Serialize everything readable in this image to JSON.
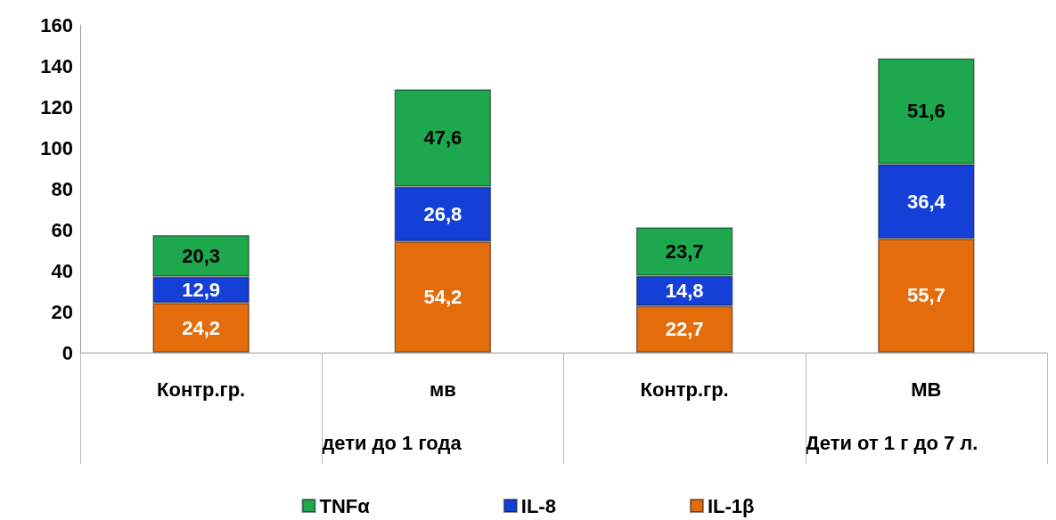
{
  "chart_data": {
    "type": "bar",
    "stacked": true,
    "categories": [
      "Контр.гр.",
      "мв",
      "Контр.гр.",
      "МВ"
    ],
    "series": [
      {
        "name": "IL-1β",
        "color": "#e46c0a",
        "values": [
          24.2,
          54.2,
          22.7,
          55.7
        ],
        "value_labels": [
          "24,2",
          "54,2",
          "22,7",
          "55,7"
        ]
      },
      {
        "name": "IL-8",
        "color": "#1440d8",
        "values": [
          12.9,
          26.8,
          14.8,
          36.4
        ],
        "value_labels": [
          "12,9",
          "26,8",
          "14,8",
          "36,4"
        ]
      },
      {
        "name": "TNFα",
        "color": "#1ea84e",
        "values": [
          20.3,
          47.6,
          23.7,
          51.6
        ],
        "value_labels": [
          "20,3",
          "47,6",
          "23,7",
          "51,6"
        ]
      }
    ],
    "ylim": [
      0,
      160
    ],
    "yticks": [
      0,
      20,
      40,
      60,
      80,
      100,
      120,
      140,
      160
    ],
    "grid": false,
    "legend": "bottom",
    "annotations": [
      "дети до 1 года",
      "Дети от 1 г до 7 л."
    ]
  }
}
